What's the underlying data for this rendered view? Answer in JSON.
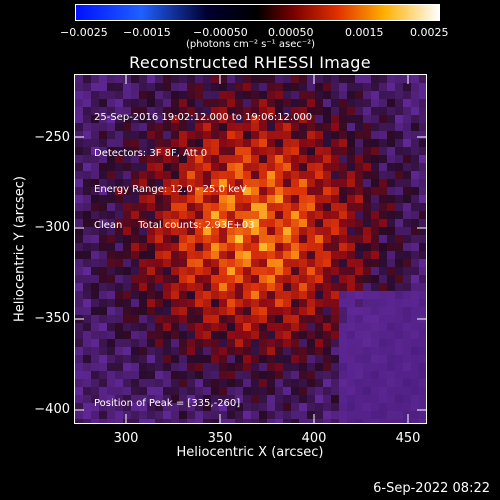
{
  "colorbar": {
    "ticks": [
      "−0.0025",
      "−0.0015",
      "−0.00050",
      "0.00050",
      "0.0015",
      "0.0025"
    ],
    "unit": "(photons cm⁻² s⁻¹ asec⁻²)"
  },
  "plot": {
    "title": "Reconstructed RHESSI Image",
    "info_lines": [
      "25-Sep-2016 19:02:12.000 to 19:06:12.000",
      "Detectors: 3F 8F, Att 0",
      "Energy Range: 12.0 - 25.0 keV",
      "Clean     Total counts: 2.93E+03"
    ],
    "peak": "Position of Peak = [335,-260]",
    "xlabel": "Heliocentric X (arcsec)",
    "ylabel": "Heliocentric Y (arcsec)",
    "xticks": [
      "300",
      "350",
      "400",
      "450"
    ],
    "yticks": [
      "−250",
      "−300",
      "−350",
      "−400"
    ]
  },
  "footer": {
    "date": "6-Sep-2022 08:22"
  },
  "colors": {
    "background": "#000000",
    "colorbar_low": "#0000ff",
    "colorbar_mid": "#000000",
    "colorbar_high": "#ffffff",
    "map_dark": "#5a2a8a",
    "map_bright": "#ffd040"
  }
}
